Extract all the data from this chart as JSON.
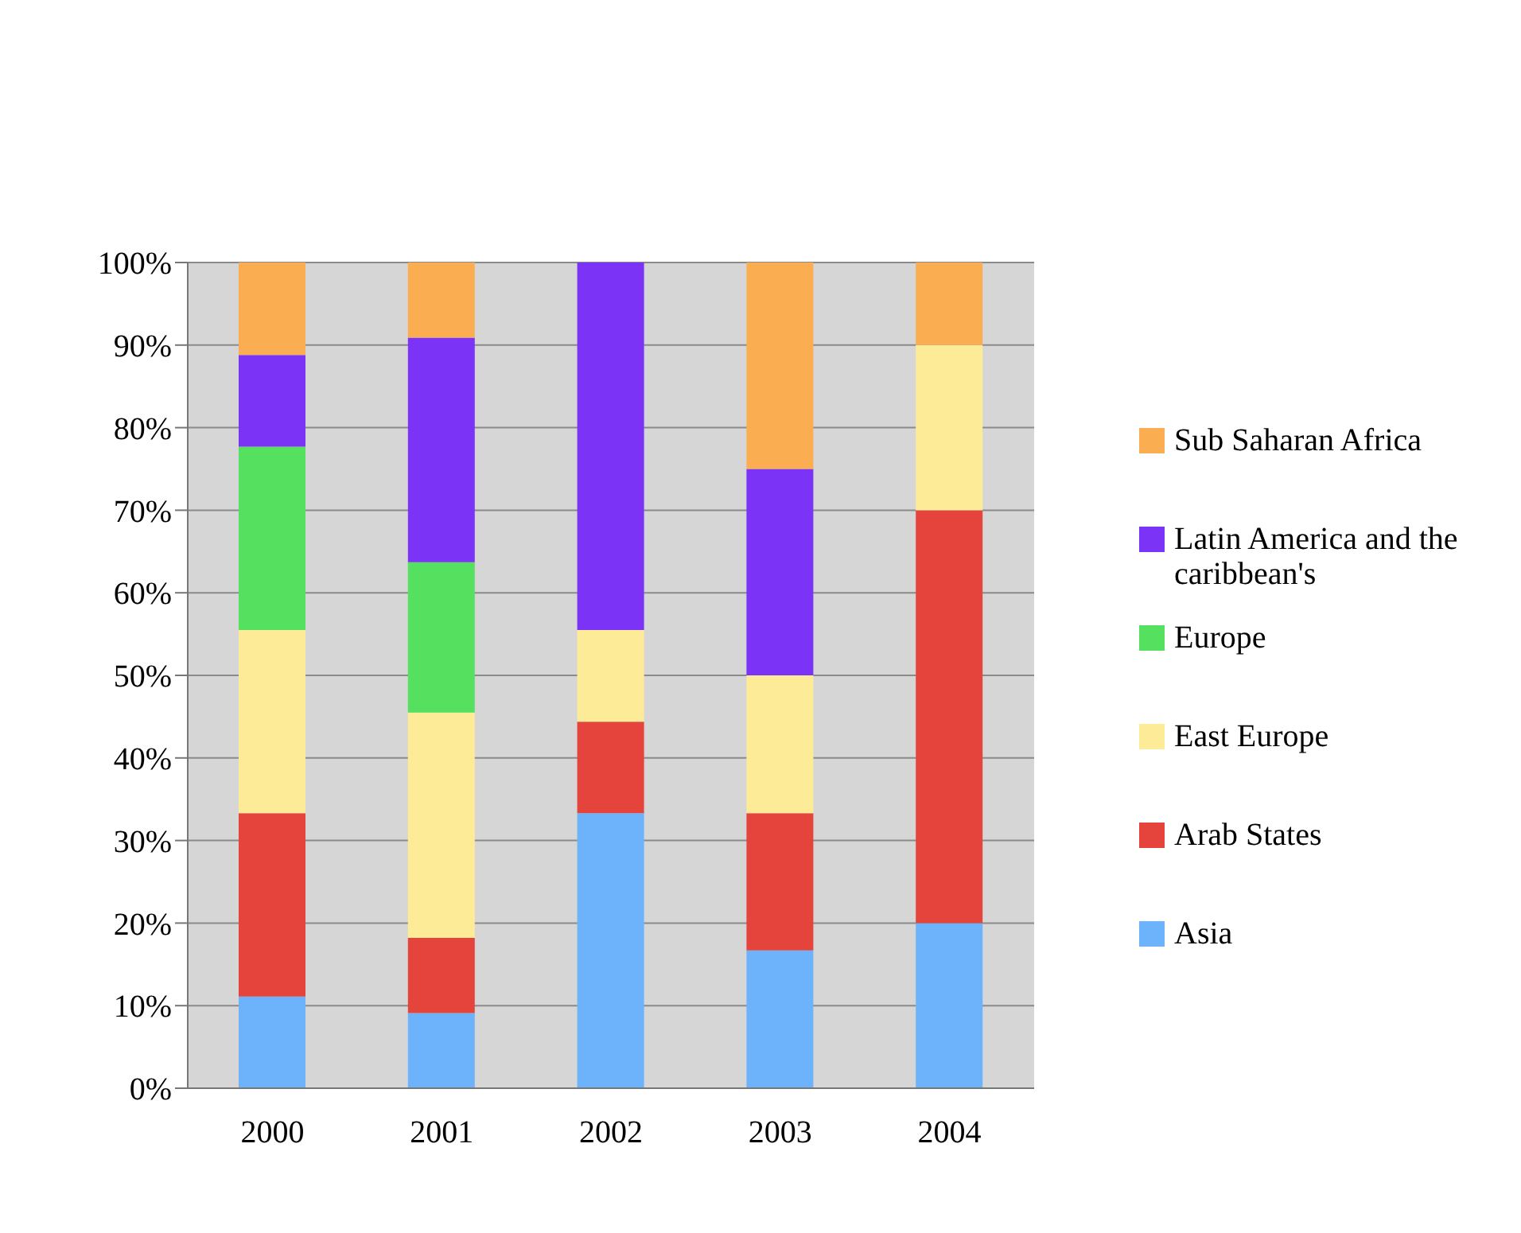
{
  "chart_data": {
    "type": "bar",
    "stacked": true,
    "categories": [
      "2000",
      "2001",
      "2002",
      "2003",
      "2004"
    ],
    "series": [
      {
        "name": "Asia",
        "color": "#6db3fb",
        "values": [
          11.1,
          9.1,
          33.3,
          16.7,
          20
        ]
      },
      {
        "name": "Arab States",
        "color": "#e5443c",
        "values": [
          22.2,
          9.1,
          11.1,
          16.6,
          50
        ]
      },
      {
        "name": "East Europe",
        "color": "#fdeb98",
        "values": [
          22.2,
          27.3,
          11.1,
          16.7,
          20
        ]
      },
      {
        "name": "Europe",
        "color": "#55e060",
        "values": [
          22.2,
          18.2,
          0,
          0,
          0
        ]
      },
      {
        "name": "Latin America and the caribbean's",
        "color": "#7b33f5",
        "values": [
          11.1,
          27.2,
          44.5,
          25,
          0
        ]
      },
      {
        "name": "Sub Saharan Africa",
        "color": "#fbad52",
        "values": [
          11.2,
          9.1,
          0,
          25,
          10
        ]
      }
    ],
    "ylim": [
      0,
      100
    ],
    "yticks": [
      {
        "value": 0,
        "label": "0%"
      },
      {
        "value": 10,
        "label": "10%"
      },
      {
        "value": 20,
        "label": "20%"
      },
      {
        "value": 30,
        "label": "30%"
      },
      {
        "value": 40,
        "label": "40%"
      },
      {
        "value": 50,
        "label": "50%"
      },
      {
        "value": 60,
        "label": "60%"
      },
      {
        "value": 70,
        "label": "70%"
      },
      {
        "value": 80,
        "label": "80%"
      },
      {
        "value": 90,
        "label": "90%"
      },
      {
        "value": 100,
        "label": "100%"
      }
    ],
    "grid": "y",
    "legend": "right"
  }
}
